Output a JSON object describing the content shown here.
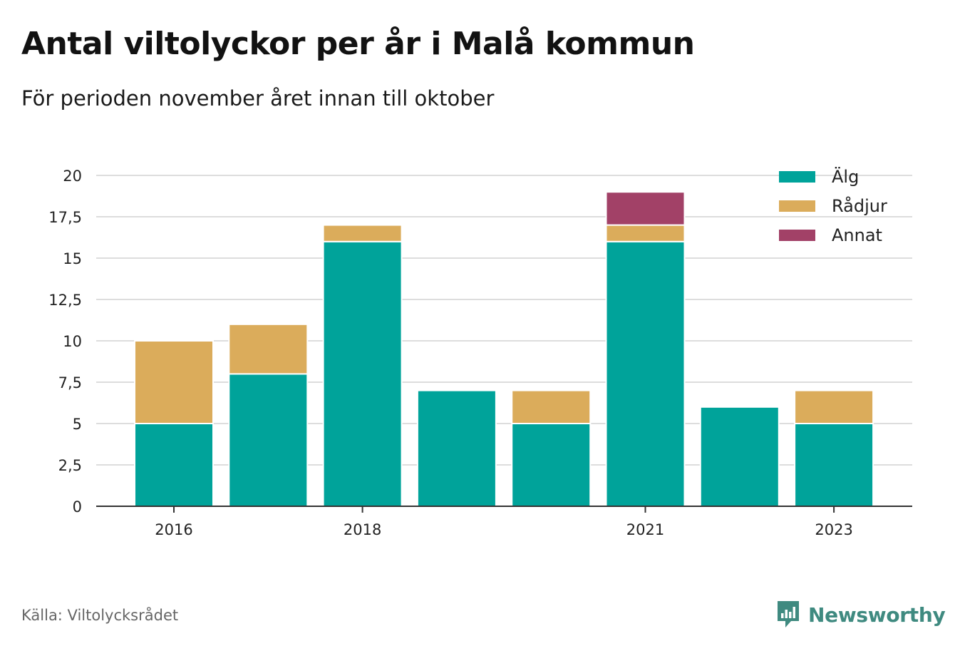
{
  "header": {
    "title": "Antal viltolyckor per år i Malå kommun",
    "subtitle": "För perioden november året innan till oktober"
  },
  "footer": {
    "source": "Källa: Viltolycksrådet",
    "brand": "Newsworthy"
  },
  "colors": {
    "alg": "#00a39a",
    "radjur": "#dbac5b",
    "annat": "#a24167",
    "grid": "#dddddd",
    "axis": "#333333",
    "brand": "#3f8a80"
  },
  "chart_data": {
    "type": "bar",
    "stacked": true,
    "categories": [
      "2016",
      "2017",
      "2018",
      "2019",
      "2020",
      "2021",
      "2022",
      "2023"
    ],
    "x_tick_labels": [
      "2016",
      "",
      "2018",
      "",
      "",
      "2021",
      "",
      "2023"
    ],
    "series": [
      {
        "name": "Älg",
        "values": [
          5,
          8,
          16,
          7,
          5,
          16,
          6,
          5
        ]
      },
      {
        "name": "Rådjur",
        "values": [
          5,
          3,
          1,
          0,
          2,
          1,
          0,
          2
        ]
      },
      {
        "name": "Annat",
        "values": [
          0,
          0,
          0,
          0,
          0,
          2,
          0,
          0
        ]
      }
    ],
    "ylim": [
      0,
      20
    ],
    "y_ticks": [
      0,
      2.5,
      5,
      7.5,
      10,
      12.5,
      15,
      17.5,
      20
    ],
    "y_tick_labels": [
      "0",
      "2,5",
      "5",
      "7,5",
      "10",
      "12,5",
      "15",
      "17,5",
      "20"
    ],
    "grid": true,
    "legend_position": "top-right"
  }
}
